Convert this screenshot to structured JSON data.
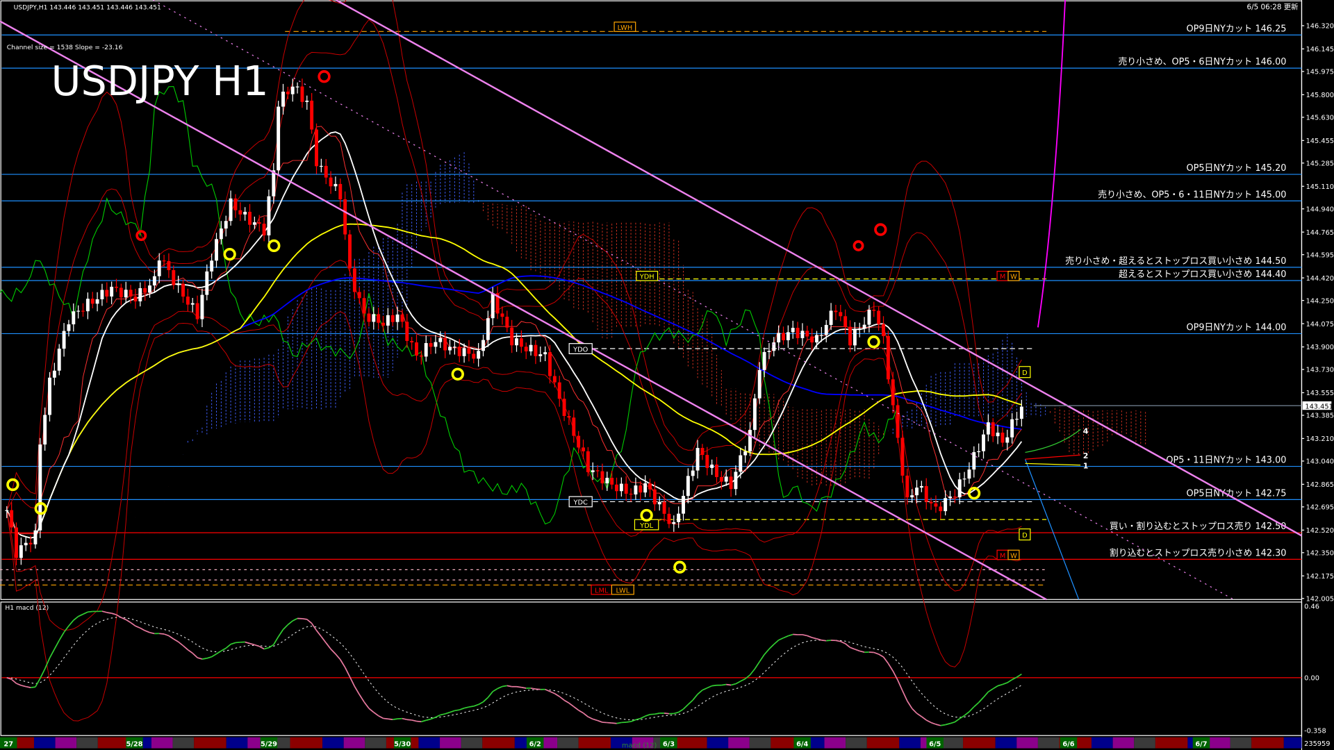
{
  "header": {
    "symbol_info": "USDJPY,H1  143.446 143.451 143.446 143.451",
    "big_title": "USDJPY H1",
    "channel_info": "Channel size = 1538 Slope = -23.16",
    "updated": "6/5 06:28 更新"
  },
  "colors": {
    "background": "#000000",
    "bull_candle": "#ffffff",
    "bear_candle": "#ff0000",
    "level_blue": "#1e90ff",
    "level_red": "#ff0000",
    "channel": "#ee82ee",
    "ma_short": "#ffffff",
    "ma_mid": "#ffff00",
    "ma_long": "#0000ff",
    "macd_up": "#32cd32",
    "macd_down": "#e87aa0"
  },
  "levels": [
    {
      "label": "OP9日NYカット 146.25",
      "price": 146.25,
      "color": "#1e90ff"
    },
    {
      "label": "売り小さめ、OP5・6日NYカット 146.00",
      "price": 146.0,
      "color": "#1e90ff"
    },
    {
      "label": "OP5日NYカット 145.20",
      "price": 145.2,
      "color": "#1e90ff"
    },
    {
      "label": "売り小さめ、OP5・6・11日NYカット 145.00",
      "price": 145.0,
      "color": "#1e90ff"
    },
    {
      "label": "売り小さめ・超えるとストップロス買い小さめ 144.50",
      "price": 144.5,
      "color": "#1e90ff"
    },
    {
      "label": "超えるとストップロス買い小さめ 144.40",
      "price": 144.4,
      "color": "#1e90ff"
    },
    {
      "label": "OP9日NYカット 144.00",
      "price": 144.0,
      "color": "#1e90ff"
    },
    {
      "label": "OP5・11日NYカット 143.00",
      "price": 143.0,
      "color": "#1e90ff"
    },
    {
      "label": "OP5日NYカット 142.75",
      "price": 142.75,
      "color": "#1e90ff"
    },
    {
      "label": "買い・割り込むとストップロス売り 142.50",
      "price": 142.5,
      "color": "#ff0000"
    },
    {
      "label": "割り込むとストップロス売り小さめ 142.30",
      "price": 142.3,
      "color": "#ff0000"
    }
  ],
  "markers": {
    "lwh": "LWH",
    "ydh": "YDH",
    "ydo": "YDO",
    "ydc": "YDC",
    "ydl": "YDL",
    "lml": "LML",
    "lwl": "LWL",
    "m": "M",
    "w": "W",
    "d": "D",
    "n4": "4",
    "n2": "2",
    "n1": "1"
  },
  "price_axis": {
    "ticks": [
      "146.320",
      "146.145",
      "145.975",
      "145.800",
      "145.630",
      "145.455",
      "145.285",
      "145.110",
      "144.940",
      "144.765",
      "144.595",
      "144.420",
      "144.250",
      "144.075",
      "143.900",
      "143.730",
      "143.555",
      "143.385",
      "143.210",
      "143.040",
      "142.865",
      "142.695",
      "142.520",
      "142.350",
      "142.175",
      "142.005"
    ],
    "current": "143.451"
  },
  "macd": {
    "label": "H1  macd (12)",
    "ticks": [
      "0.46",
      "0.00",
      "-0.358"
    ],
    "footer_label": "macd (12)"
  },
  "date_bar": {
    "labels": [
      "27",
      "5/28",
      "5/29",
      "5/30",
      "6/2",
      "6/3",
      "6/4",
      "6/5",
      "6/6",
      "6/7"
    ],
    "right_value": "235959"
  },
  "chart_data": {
    "type": "candlestick",
    "title": "USDJPY H1",
    "ylim": [
      142.005,
      146.32
    ],
    "x_unit": "hourly bar index",
    "close_path": [
      [
        0,
        142.67
      ],
      [
        2,
        142.35
      ],
      [
        6,
        142.48
      ],
      [
        7,
        143.18
      ],
      [
        9,
        143.63
      ],
      [
        11,
        143.88
      ],
      [
        13,
        144.11
      ],
      [
        16,
        144.2
      ],
      [
        22,
        144.34
      ],
      [
        27,
        144.27
      ],
      [
        31,
        144.4
      ],
      [
        32,
        144.59
      ],
      [
        36,
        144.34
      ],
      [
        40,
        144.14
      ],
      [
        43,
        144.59
      ],
      [
        47,
        144.98
      ],
      [
        50,
        144.88
      ],
      [
        54,
        144.78
      ],
      [
        56,
        145.23
      ],
      [
        57,
        145.74
      ],
      [
        60,
        145.87
      ],
      [
        63,
        145.74
      ],
      [
        65,
        145.3
      ],
      [
        66,
        145.23
      ],
      [
        70,
        145.04
      ],
      [
        72,
        144.46
      ],
      [
        75,
        144.14
      ],
      [
        79,
        144.08
      ],
      [
        82,
        144.14
      ],
      [
        86,
        143.83
      ],
      [
        90,
        143.95
      ],
      [
        93,
        143.89
      ],
      [
        99,
        143.83
      ],
      [
        102,
        144.27
      ],
      [
        106,
        143.95
      ],
      [
        109,
        143.89
      ],
      [
        113,
        143.83
      ],
      [
        116,
        143.5
      ],
      [
        122,
        142.99
      ],
      [
        127,
        142.86
      ],
      [
        131,
        142.8
      ],
      [
        134,
        142.86
      ],
      [
        140,
        142.54
      ],
      [
        141,
        142.67
      ],
      [
        145,
        143.12
      ],
      [
        149,
        142.93
      ],
      [
        152,
        142.86
      ],
      [
        156,
        143.25
      ],
      [
        158,
        143.76
      ],
      [
        161,
        143.95
      ],
      [
        165,
        144.02
      ],
      [
        170,
        143.95
      ],
      [
        174,
        144.2
      ],
      [
        177,
        143.95
      ],
      [
        181,
        144.14
      ],
      [
        182,
        144.2
      ],
      [
        184,
        143.95
      ],
      [
        186,
        143.44
      ],
      [
        189,
        142.73
      ],
      [
        191,
        142.86
      ],
      [
        195,
        142.67
      ],
      [
        199,
        142.8
      ],
      [
        202,
        142.99
      ],
      [
        206,
        143.31
      ],
      [
        209,
        143.18
      ],
      [
        213,
        143.45
      ]
    ],
    "macd_ylim": [
      -0.358,
      0.46
    ]
  }
}
